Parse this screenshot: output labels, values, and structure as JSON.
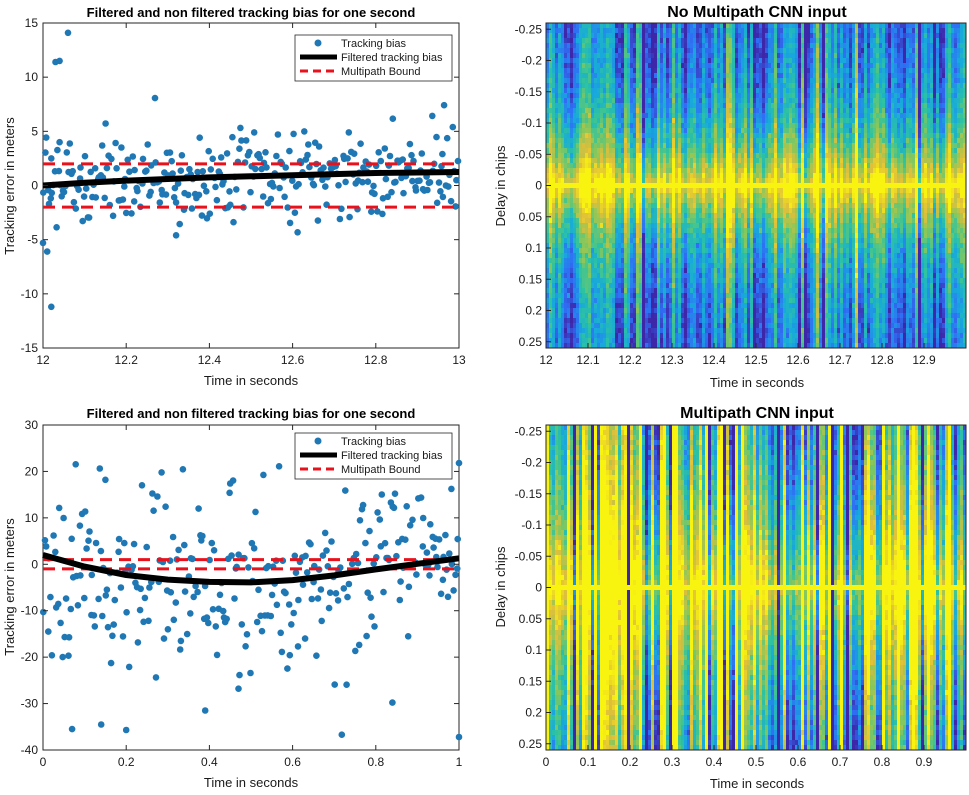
{
  "chart_data": [
    {
      "type": "scatter",
      "title": "Filtered and non filtered tracking bias for one second",
      "xlabel": "Time in seconds",
      "ylabel": "Tracking error in meters",
      "xlim": [
        12,
        13
      ],
      "ylim": [
        -15,
        15
      ],
      "xticks": [
        "12",
        "12.2",
        "12.4",
        "12.6",
        "12.8",
        "13"
      ],
      "yticks": [
        "15",
        "10",
        "5",
        "0",
        "-5",
        "-10",
        "-15"
      ],
      "legend": {
        "position": "top-right",
        "entries": [
          "Tracking bias",
          "Filtered tracking bias",
          "Multipath Bound"
        ]
      },
      "series": [
        {
          "name": "Tracking bias",
          "kind": "scatter",
          "color": "#1f77b4",
          "seed": 7,
          "noise_scale": 2.0,
          "n_points": 300,
          "outliers": [
            [
              12.0,
              -5.3
            ],
            [
              12.01,
              -6.1
            ],
            [
              12.02,
              -11.2
            ],
            [
              12.03,
              11.4
            ],
            [
              12.04,
              11.5
            ],
            [
              12.06,
              14.1
            ],
            [
              12.02,
              2.5
            ],
            [
              12.04,
              4.0
            ],
            [
              12.32,
              -4.6
            ],
            [
              12.96,
              2.9
            ]
          ]
        },
        {
          "name": "Filtered tracking bias",
          "kind": "line",
          "color": "#000000",
          "x": [
            12.0,
            12.1,
            12.2,
            12.3,
            12.4,
            12.5,
            12.6,
            12.7,
            12.8,
            12.9,
            13.0
          ],
          "y": [
            0.0,
            0.25,
            0.45,
            0.6,
            0.75,
            0.85,
            0.95,
            1.05,
            1.15,
            1.2,
            1.25
          ]
        },
        {
          "name": "Multipath Bound",
          "kind": "dashed",
          "color": "#e8121c",
          "y_upper": 2.0,
          "y_lower": -2.0
        }
      ]
    },
    {
      "type": "heatmap",
      "title": "No Multipath CNN input",
      "xlabel": "Time in seconds",
      "ylabel": "Delay in chips",
      "xlim": [
        12,
        13
      ],
      "ylim": [
        -0.26,
        0.26
      ],
      "xticks": [
        "12",
        "12.1",
        "12.2",
        "12.3",
        "12.4",
        "12.5",
        "12.6",
        "12.7",
        "12.8",
        "12.9"
      ],
      "yticks": [
        "-0.25",
        "-0.2",
        "-0.15",
        "-0.1",
        "-0.05",
        "0",
        "0.05",
        "0.1",
        "0.15",
        "0.2",
        "0.25"
      ],
      "colormap": [
        "#3e26a8",
        "#2f6ff5",
        "#17a9dc",
        "#2ec3a0",
        "#8ac75a",
        "#e0bf3a",
        "#f9f40f"
      ],
      "description_params": {
        "center_peak": 1.0,
        "falloff_width": 0.09,
        "column_variation": 0.18,
        "seed": 11
      }
    },
    {
      "type": "scatter",
      "title": "Filtered and non filtered tracking bias for one second",
      "xlabel": "Time in seconds",
      "ylabel": "Tracking error in meters",
      "xlim": [
        0,
        1
      ],
      "ylim": [
        -40,
        30
      ],
      "xticks": [
        "0",
        "0.2",
        "0.4",
        "0.6",
        "0.8",
        "1"
      ],
      "yticks": [
        "30",
        "20",
        "10",
        "0",
        "-10",
        "-20",
        "-30",
        "-40"
      ],
      "legend": {
        "position": "top-right",
        "entries": [
          "Tracking bias",
          "Filtered tracking bias",
          "Multipath Bound"
        ]
      },
      "series": [
        {
          "name": "Tracking bias",
          "kind": "scatter",
          "color": "#1f77b4",
          "seed": 23,
          "noise_scale": 9.5,
          "n_points": 290,
          "outliers": [
            [
              0.07,
              -35.5
            ],
            [
              0.14,
              -34.5
            ],
            [
              0.2,
              -35.7
            ],
            [
              0.39,
              -31.5
            ],
            [
              0.45,
              17.4
            ],
            [
              0.15,
              18.2
            ],
            [
              0.84,
              -29.8
            ],
            [
              1.0,
              21.8
            ],
            [
              1.0,
              -37.2
            ],
            [
              0.47,
              -26.8
            ]
          ]
        },
        {
          "name": "Filtered tracking bias",
          "kind": "line",
          "color": "#000000",
          "x": [
            0.0,
            0.1,
            0.2,
            0.3,
            0.4,
            0.5,
            0.6,
            0.7,
            0.8,
            0.9,
            1.0
          ],
          "y": [
            2.0,
            -0.5,
            -2.3,
            -3.3,
            -3.8,
            -3.9,
            -3.4,
            -2.4,
            -1.1,
            0.1,
            1.3
          ]
        },
        {
          "name": "Multipath Bound",
          "kind": "dashed",
          "color": "#e8121c",
          "y_upper": 1.0,
          "y_lower": -1.0
        }
      ]
    },
    {
      "type": "heatmap",
      "title": "Multipath CNN input",
      "xlabel": "Time in seconds",
      "ylabel": "Delay in chips",
      "xlim": [
        0,
        1
      ],
      "ylim": [
        -0.26,
        0.26
      ],
      "xticks": [
        "0",
        "0.1",
        "0.2",
        "0.3",
        "0.4",
        "0.5",
        "0.6",
        "0.7",
        "0.8",
        "0.9"
      ],
      "yticks": [
        "-0.25",
        "-0.2",
        "-0.15",
        "-0.1",
        "-0.05",
        "0",
        "0.05",
        "0.1",
        "0.15",
        "0.2",
        "0.25"
      ],
      "colormap": [
        "#3e26a8",
        "#2f6ff5",
        "#17a9dc",
        "#2ec3a0",
        "#8ac75a",
        "#e0bf3a",
        "#f9f40f"
      ],
      "description_params": {
        "center_peak": 1.0,
        "falloff_width": 0.22,
        "column_variation": 0.45,
        "seed": 29
      }
    }
  ]
}
